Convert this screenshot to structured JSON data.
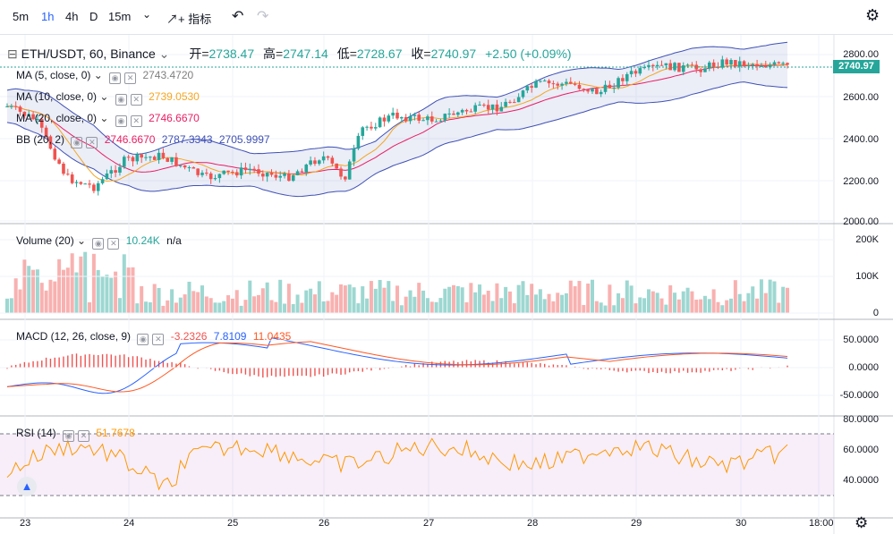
{
  "toolbar": {
    "intervals": [
      "5m",
      "1h",
      "4h",
      "D",
      "15m"
    ],
    "indicators_label": "指标"
  },
  "symbol": {
    "title": "ETH/USDT, 60, Binance",
    "open_key": "开",
    "open": "2738.47",
    "high_key": "高",
    "high": "2747.14",
    "low_key": "低",
    "low": "2728.67",
    "close_key": "收",
    "close": "2740.97",
    "change": "+2.50 (+0.09%)"
  },
  "studies": {
    "ma5": {
      "label": "MA (5, close, 0)",
      "value": "2743.4720",
      "color": "#7f7f7f"
    },
    "ma10": {
      "label": "MA (10, close, 0)",
      "value": "2739.0530",
      "color": "#f5a623"
    },
    "ma20": {
      "label": "MA (20, close, 0)",
      "value": "2746.6670",
      "color": "#e91e63"
    },
    "bb": {
      "label": "BB (20, 2)",
      "basis": "2746.6670",
      "upper": "2787.3343",
      "lower": "2705.9997"
    },
    "volume": {
      "label": "Volume (20)",
      "value": "10.24K",
      "ma": "n/a"
    },
    "macd": {
      "label": "MACD (12, 26, close, 9)",
      "hist": "-3.2326",
      "macd": "7.8109",
      "signal": "11.0435"
    },
    "rsi": {
      "label": "RSI (14)",
      "value": "51.7678"
    }
  },
  "price_axis": [
    "2800.00",
    "2600.00",
    "2400.00",
    "2200.00",
    "2000.00"
  ],
  "last_price_tag": "2740.97",
  "volume_axis": [
    "200K",
    "100K",
    "0"
  ],
  "macd_axis": [
    "50.0000",
    "0.0000",
    "-50.0000"
  ],
  "rsi_axis": [
    "80.0000",
    "60.0000",
    "40.0000"
  ],
  "time_axis": [
    "23",
    "24",
    "25",
    "26",
    "27",
    "28",
    "29",
    "30",
    "18:00"
  ],
  "colors": {
    "up": "#26a69a",
    "down": "#ef5350",
    "bb": "#3f51b5",
    "rsi": "#ff9800",
    "macd": "#2962ff",
    "signal": "#ff5722"
  }
}
